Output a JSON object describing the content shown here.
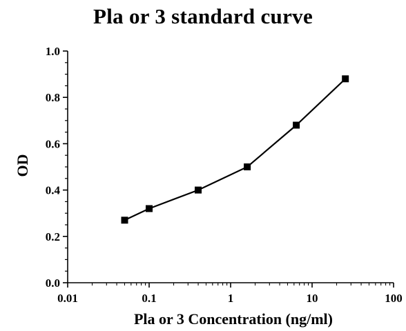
{
  "chart_data": {
    "type": "scatter",
    "title": "Pla or 3 standard curve",
    "xlabel": "Pla or 3 Concentration (ng/ml)",
    "ylabel": "OD",
    "x_scale": "log",
    "xlim": [
      0.01,
      100
    ],
    "ylim": [
      0.0,
      1.0
    ],
    "x_ticks": [
      0.01,
      0.1,
      1,
      10,
      100
    ],
    "x_tick_labels": [
      "0.01",
      "0.1",
      "1",
      "10",
      "100"
    ],
    "y_ticks": [
      0.0,
      0.2,
      0.4,
      0.6,
      0.8,
      1.0
    ],
    "y_tick_labels": [
      "0.0",
      "0.2",
      "0.4",
      "0.6",
      "0.8",
      "1.0"
    ],
    "grid": false,
    "marker": "square",
    "connected": true,
    "line_color": "#000000",
    "series": [
      {
        "x": [
          0.05,
          0.1,
          0.4,
          1.6,
          6.4,
          25.6
        ],
        "y": [
          0.27,
          0.32,
          0.4,
          0.5,
          0.68,
          0.88
        ]
      }
    ]
  }
}
